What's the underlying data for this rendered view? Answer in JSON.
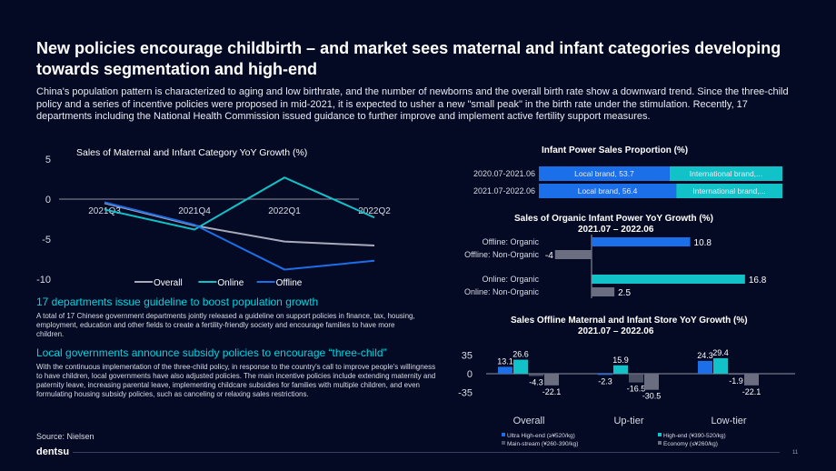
{
  "page": {
    "title": "New policies encourage childbirth – and market sees maternal and infant categories developing towards segmentation and high-end",
    "intro": "China's population pattern is characterized to aging and low birthrate, and the number of newborns and the overall birth rate show a downward trend. Since the three-child policy and a series of incentive policies were proposed in mid-2021, it is expected to usher a new \"small peak\" in the birth rate under the stimulation. Recently, 17 departments including the National Health Commission issued guidance to further improve and implement active fertility support measures.",
    "section1_heading": "17 departments issue guideline to boost population growth",
    "section1_text": "A total of 17 Chinese government departments jointly released a guideline on support policies in finance, tax, housing, employment, education and other fields to create a fertility-friendly society and encourage families to have more children.",
    "section2_heading": "Local governments announce subsidy policies to encourage “three-child”",
    "section2_text": "With the continuous implementation of the three-child policy, in response to the country's call to improve people's willingness to have children, local governments have also adjusted policies. The main incentive policies include extending maternity and paternity leave, increasing parental leave, implementing childcare subsidies for families with multiple children, and even formulating housing subsidy policies, such as canceling or relaxing sales restrictions.",
    "source": "Source: Nielsen",
    "logo": "dentsu",
    "page_number": "11"
  },
  "colors": {
    "bg": "#050a24",
    "overall": "#a8aabb",
    "online": "#12c2c9",
    "offline": "#1b6fe8",
    "local": "#1b6fe8",
    "international": "#12c2c9",
    "gray": "#6b6e80",
    "axis": "#bfc2cc"
  },
  "chart_data": [
    {
      "id": "yoy-line",
      "type": "line",
      "title": "Sales of Maternal and Infant Category YoY Growth (%)",
      "categories": [
        "2021Q3",
        "2021Q4",
        "2022Q1",
        "2022Q2"
      ],
      "ylim": [
        -10,
        5
      ],
      "yticks": [
        5,
        0,
        -5,
        -10
      ],
      "legend": "bottom",
      "series": [
        {
          "name": "Overall",
          "values": [
            -0.5,
            -3.3,
            -5.3,
            -5.8
          ]
        },
        {
          "name": "Online",
          "values": [
            -1.3,
            -3.8,
            2.7,
            -2.3
          ]
        },
        {
          "name": "Offline",
          "values": [
            -0.4,
            -3.2,
            -8.8,
            -7.7
          ]
        }
      ]
    },
    {
      "id": "proportion",
      "type": "bar",
      "title": "Infant Power Sales Proportion (%)",
      "categories": [
        "2020.07-2021.06",
        "2021.07-2022.06"
      ],
      "series": [
        {
          "name": "Local brand",
          "values": [
            53.7,
            56.4
          ],
          "labels": [
            "Local brand, 53.7",
            "Local brand, 56.4"
          ]
        },
        {
          "name": "International brand",
          "values": [
            46.3,
            43.6
          ],
          "labels": [
            "International brand,...",
            "International brand,..."
          ]
        }
      ]
    },
    {
      "id": "organic",
      "type": "bar",
      "title": "Sales of Organic Infant Power YoY Growth (%)",
      "subtitle": "2021.07 – 2022.06",
      "categories": [
        "Offline: Organic",
        "Offline: Non-Organic",
        "Online: Organic",
        "Online: Non-Organic"
      ],
      "values": [
        10.8,
        -4,
        16.8,
        2.5
      ],
      "value_labels": [
        "10.8",
        "-4",
        "16.8",
        "2.5"
      ]
    },
    {
      "id": "store",
      "type": "bar",
      "title": "Sales Offline Maternal and Infant Store YoY Growth (%)",
      "subtitle": "2021.07 – 2022.06",
      "categories": [
        "Overall",
        "Up-tier",
        "Low-tier"
      ],
      "ylim": [
        -35,
        35
      ],
      "yticks": [
        35,
        0,
        -35
      ],
      "series": [
        {
          "name": "Ultra High-end (≥¥520/kg)",
          "values": [
            13.1,
            -2.3,
            24.3
          ]
        },
        {
          "name": "High-end (¥390-520/kg)",
          "values": [
            26.6,
            15.9,
            29.4
          ]
        },
        {
          "name": "Main-stream (¥260-390/kg)",
          "values": [
            -4.3,
            -16.5,
            -1.9
          ]
        },
        {
          "name": "Economy (≤¥260/kg)",
          "values": [
            -22.1,
            -30.5,
            -22.1
          ]
        }
      ]
    }
  ]
}
